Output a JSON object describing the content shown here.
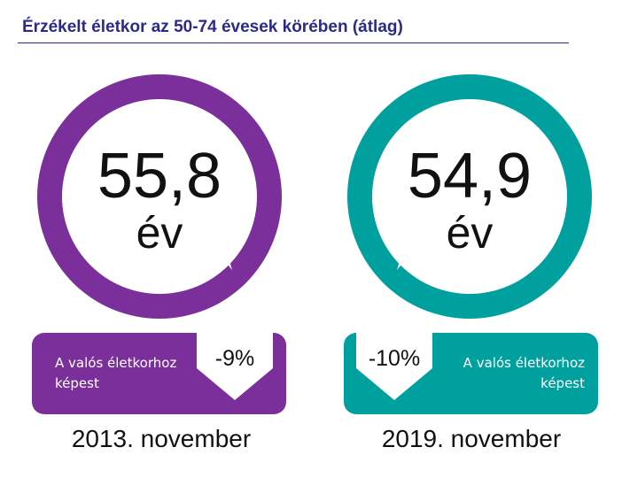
{
  "title": "Érzékelt életkor az 50-74 évesek körében (átlag)",
  "colors": {
    "left": "#7b2f9a",
    "right": "#00a09e",
    "title": "#2b2a8c"
  },
  "cards": [
    {
      "value": "55,8",
      "unit": "év",
      "change": "-9%",
      "caption_line1": "A valós életkorhoz",
      "caption_line2": "képest",
      "date": "2013. november"
    },
    {
      "value": "54,9",
      "unit": "év",
      "change": "-10%",
      "caption_line1": "A valós életkorhoz",
      "caption_line2": "képest",
      "date": "2019. november"
    }
  ]
}
